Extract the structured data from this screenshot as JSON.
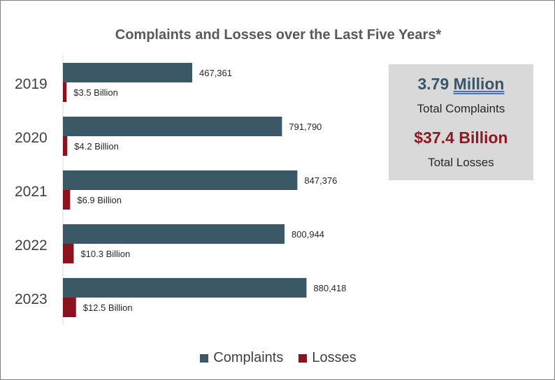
{
  "chart_data": {
    "type": "bar",
    "orientation": "horizontal",
    "title": "Complaints and Losses over the Last Five Years*",
    "categories": [
      "2019",
      "2020",
      "2021",
      "2022",
      "2023"
    ],
    "series": [
      {
        "name": "Complaints",
        "values": [
          467361,
          791790,
          847376,
          800944,
          880418
        ],
        "labels": [
          "467,361",
          "791,790",
          "847,376",
          "800,944",
          "880,418"
        ],
        "color": "#3b5866"
      },
      {
        "name": "Losses",
        "values": [
          3.5,
          4.2,
          6.9,
          10.3,
          12.5
        ],
        "unit": "Billion USD",
        "labels": [
          "$3.5 Billion",
          "$4.2 Billion",
          "$6.9 Billion",
          "$10.3 Billion",
          "$12.5 Billion"
        ],
        "color": "#8b131e"
      }
    ],
    "legend_position": "bottom",
    "grid": false
  },
  "summary": {
    "complaints_number": "3.79",
    "complaints_unit": "Million",
    "complaints_caption": "Total Complaints",
    "losses_value": "$37.4 Billion",
    "losses_caption": "Total Losses"
  }
}
